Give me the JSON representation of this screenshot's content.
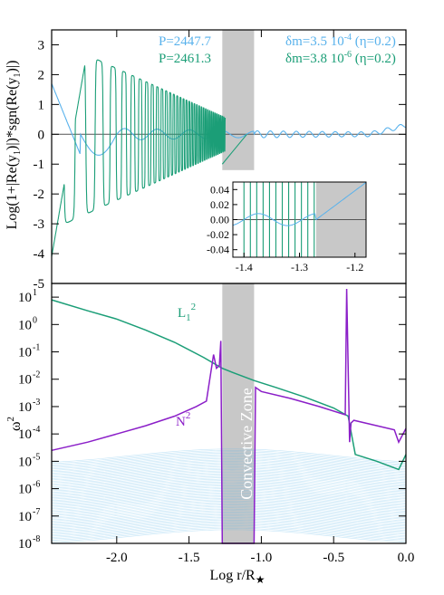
{
  "colors": {
    "light_blue": "#59b2ec",
    "green": "#1b9e77",
    "purple": "#8b1fc8",
    "grey_band": "#c8c8c8",
    "mode_lines": "#56b4e9"
  },
  "chart_data": [
    {
      "type": "line",
      "panel": "top",
      "xlim": [
        -2.45,
        0.0
      ],
      "ylim": [
        -5,
        3.5
      ],
      "yticks": [
        "-5",
        "-4",
        "-3",
        "-2",
        "-1",
        "0",
        "1",
        "2",
        "3"
      ],
      "ylabel": "Log(1+|Re(y1)|)*sgn(Re(y1))",
      "ylabel_parts": {
        "pre": "Log(1+|Re(y",
        "sub1": "1",
        "mid": ")|)*sgn(Re(y",
        "sub2": "1",
        "post": ")|)"
      },
      "shaded_region": {
        "x": [
          -1.27,
          -1.05
        ],
        "y": [
          -1.2,
          3.5
        ]
      },
      "legend": [
        {
          "label": "P=2447.7",
          "note_pre": "δm=3.5 10",
          "note_exp": "-4",
          "note_post": " (η=0.2)",
          "color": "light_blue"
        },
        {
          "label": "P=2461.3",
          "note_pre": "δm=3.8 10",
          "note_exp": "-6",
          "note_post": " (η=0.2)",
          "color": "green"
        }
      ],
      "series": [
        {
          "name": "P=2447.7",
          "color": "light_blue",
          "description": "small oscillation (amplitude ~0.3) across the star, rising from 1.7 at the left edge through a dip near -0.7 at x=-2.2"
        },
        {
          "name": "P=2461.3",
          "color": "green",
          "envelope_peaks": [
            {
              "x": -2.15,
              "y": 3.0,
              "y_min": -4.1
            },
            {
              "x": -1.9,
              "y": 2.5,
              "y_min": -3.0
            },
            {
              "x": -1.72,
              "y": 1.95,
              "y_min": -2.2
            },
            {
              "x": -1.58,
              "y": 1.45,
              "y_min": -1.7
            },
            {
              "x": -1.48,
              "y": 1.0,
              "y_min": -1.4
            }
          ]
        }
      ],
      "inset": {
        "xlim": [
          -1.42,
          -1.18
        ],
        "ylim": [
          -0.05,
          0.05
        ],
        "xticks": [
          "-1.4",
          "-1.3",
          "-1.2"
        ],
        "yticks": [
          "-0.04",
          "-0.02",
          "0.00",
          "0.02",
          "0.04"
        ],
        "shaded_region": {
          "x": [
            -1.27,
            -1.18
          ]
        }
      }
    },
    {
      "type": "line",
      "panel": "bottom",
      "xlim": [
        -2.45,
        0.0
      ],
      "ylim_log10": [
        -8,
        1.5
      ],
      "xticks": [
        "-2.0",
        "-1.5",
        "-1.0",
        "-0.5",
        "0.0"
      ],
      "ytick_base": "10",
      "ytick_exponents": [
        "-8",
        "-7",
        "-6",
        "-5",
        "-4",
        "-3",
        "-2",
        "-1",
        "0",
        "1"
      ],
      "ylabel_base": "ω",
      "ylabel_exp": "2",
      "xlabel_pre": "Log r/R",
      "xlabel_sub": "★",
      "shaded_region": {
        "x": [
          -1.27,
          -1.05
        ]
      },
      "shaded_label": "Convective Zone",
      "series": [
        {
          "name": "L1^2",
          "label_base": "L",
          "label_sub": "1",
          "label_sup": "2",
          "color": "green",
          "x": [
            -2.45,
            -2.2,
            -2.0,
            -1.8,
            -1.6,
            -1.4,
            -1.27,
            -1.2,
            -1.05,
            -0.9,
            -0.7,
            -0.5,
            -0.4,
            -0.35,
            -0.2,
            -0.05,
            0.0
          ],
          "log10_y": [
            0.9,
            0.5,
            0.2,
            -0.2,
            -0.65,
            -1.2,
            -1.6,
            -1.75,
            -2.05,
            -2.3,
            -2.65,
            -3.05,
            -3.35,
            -4.75,
            -5.0,
            -5.3,
            -4.75
          ]
        },
        {
          "name": "N^2",
          "label_base": "N",
          "label_sup": "2",
          "color": "purple",
          "x": [
            -2.45,
            -2.2,
            -2.0,
            -1.8,
            -1.6,
            -1.45,
            -1.38,
            -1.33,
            -1.31,
            -1.29,
            -1.28,
            -1.27,
            -1.05,
            -1.04,
            -1.0,
            -0.8,
            -0.6,
            -0.42,
            -0.41,
            -0.39,
            -0.38,
            -0.36,
            -0.2,
            -0.08,
            -0.05,
            0.0
          ],
          "log10_y": [
            -4.6,
            -4.3,
            -4.0,
            -3.7,
            -3.35,
            -3.0,
            -2.8,
            -1.1,
            -1.6,
            -1.5,
            -0.6,
            -8.0,
            -8.0,
            -2.3,
            -2.45,
            -2.7,
            -3.0,
            -3.3,
            1.3,
            -4.3,
            -3.6,
            -3.5,
            -3.7,
            -3.85,
            -4.3,
            -3.8
          ]
        }
      ]
    }
  ]
}
